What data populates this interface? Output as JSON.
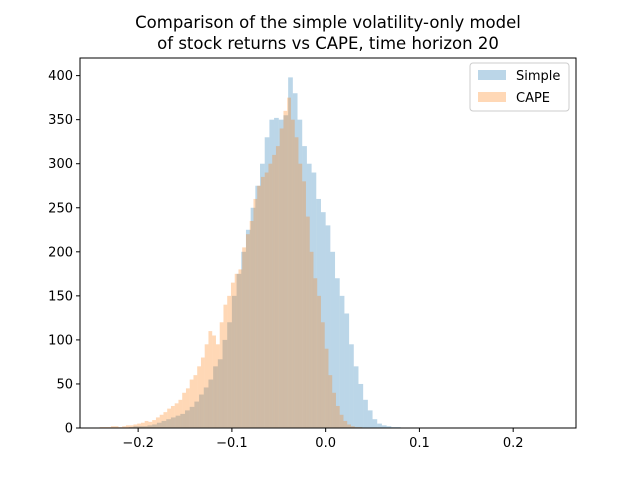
{
  "chart_data": {
    "type": "bar",
    "title_lines": [
      "Comparison of the simple volatility-only model",
      "of stock returns vs CAPE, time horizon 20"
    ],
    "xlabel": "",
    "ylabel": "",
    "xlim": [
      -0.262,
      0.267
    ],
    "ylim": [
      0,
      420
    ],
    "x_ticks": [
      -0.2,
      -0.1,
      0.0,
      0.1,
      0.2
    ],
    "x_tick_labels": [
      "−0.2",
      "−0.1",
      "0.0",
      "0.1",
      "0.2"
    ],
    "y_ticks": [
      0,
      50,
      100,
      150,
      200,
      250,
      300,
      350,
      400
    ],
    "y_tick_labels": [
      "0",
      "50",
      "100",
      "150",
      "200",
      "250",
      "300",
      "350",
      "400"
    ],
    "grid": false,
    "legend_position": "top-right",
    "series": [
      {
        "name": "Simple",
        "color": "#1f77b4",
        "opacity": 0.3,
        "bin_start": -0.245,
        "bin_width": 0.005,
        "values": [
          0,
          0,
          0,
          0,
          0,
          0,
          0,
          1,
          2,
          2,
          2,
          3,
          4,
          6,
          8,
          10,
          12,
          14,
          16,
          20,
          24,
          30,
          38,
          46,
          55,
          70,
          78,
          100,
          120,
          150,
          175,
          200,
          225,
          250,
          275,
          300,
          330,
          350,
          352,
          350,
          355,
          398,
          380,
          350,
          320,
          300,
          290,
          260,
          245,
          230,
          200,
          170,
          150,
          130,
          95,
          70,
          50,
          32,
          20,
          10,
          5,
          3,
          2,
          1,
          1,
          0,
          0,
          0,
          0,
          0
        ]
      },
      {
        "name": "CAPE",
        "color": "#ff7f0e",
        "opacity": 0.3,
        "bin_start": -0.245,
        "bin_width": 0.004,
        "values": [
          0,
          1,
          1,
          1,
          2,
          2,
          1,
          2,
          3,
          3,
          4,
          5,
          6,
          8,
          7,
          9,
          12,
          15,
          18,
          22,
          25,
          28,
          32,
          40,
          45,
          55,
          60,
          70,
          80,
          95,
          110,
          105,
          95,
          120,
          140,
          150,
          165,
          175,
          180,
          205,
          220,
          235,
          260,
          275,
          285,
          290,
          300,
          310,
          320,
          340,
          360,
          375,
          350,
          330,
          300,
          280,
          240,
          200,
          170,
          150,
          120,
          90,
          60,
          40,
          25,
          15,
          8,
          4,
          2,
          1,
          1,
          0,
          0,
          0,
          0,
          0,
          0,
          0,
          0,
          0,
          0,
          0,
          0,
          0,
          0,
          0,
          0,
          0,
          0,
          0,
          0,
          0,
          0,
          0,
          0,
          0,
          0,
          0,
          0,
          0,
          0,
          0,
          0,
          0,
          0,
          0,
          0,
          0,
          0,
          0,
          0,
          0,
          0,
          0,
          0,
          0,
          0,
          0,
          0,
          0,
          0,
          0,
          0,
          0,
          0,
          0,
          0,
          0,
          0
        ]
      }
    ]
  }
}
